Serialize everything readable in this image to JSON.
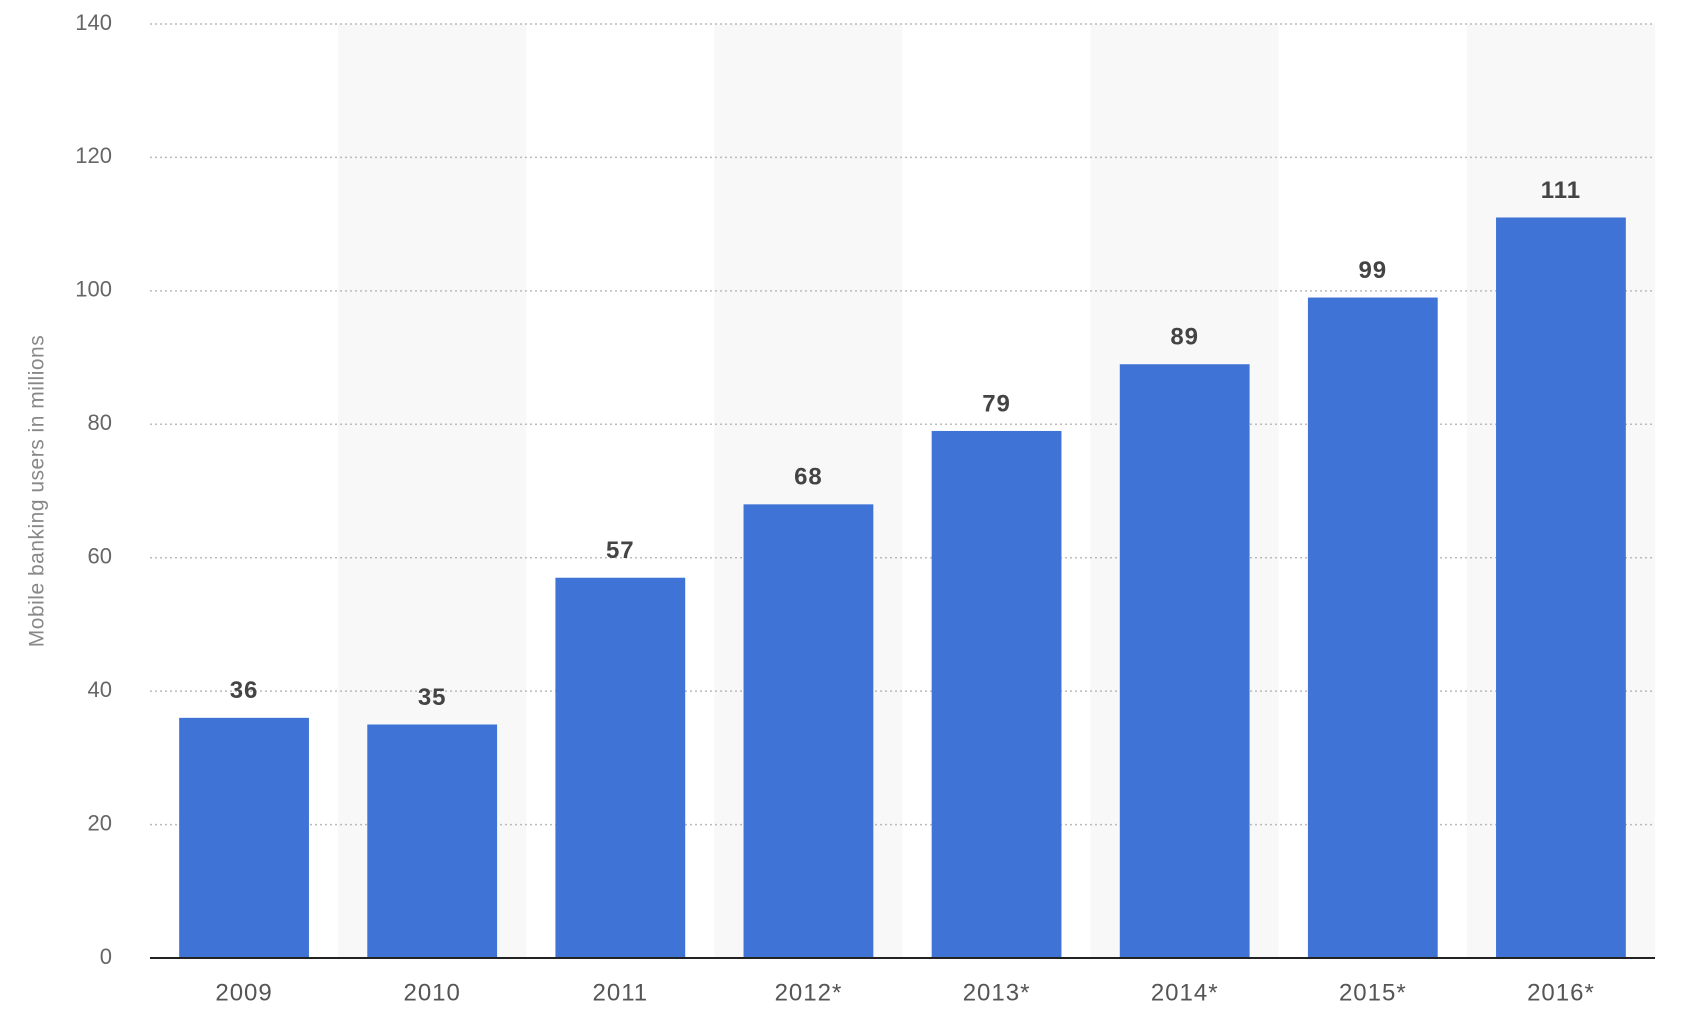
{
  "chart_data": {
    "type": "bar",
    "y_axis_label": "Mobile banking users in millions",
    "categories": [
      "2009",
      "2010",
      "2011",
      "2012*",
      "2013*",
      "2014*",
      "2015*",
      "2016*"
    ],
    "values": [
      36,
      35,
      57,
      68,
      79,
      89,
      99,
      111
    ],
    "color": "#3f74d6",
    "ylim": [
      0,
      140
    ],
    "yticks": [
      0,
      20,
      40,
      60,
      80,
      100,
      120,
      140
    ],
    "grid": true
  }
}
